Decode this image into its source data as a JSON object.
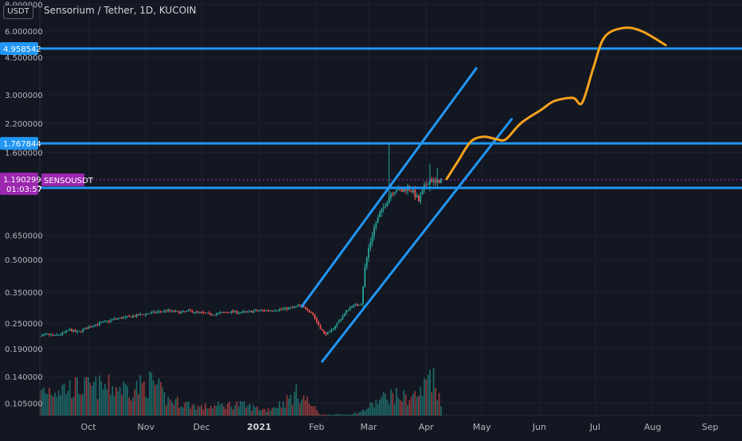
{
  "header": {
    "currency_badge": "USDT",
    "title": "Sensorium / Tether, 1D, KUCOIN"
  },
  "colors": {
    "background": "#131722",
    "grid": "#1e222d",
    "axis_text": "#b2b5be",
    "up": "#26a69a",
    "down": "#ef5350",
    "trend_line": "#2196f3",
    "projection": "#f7a21b",
    "price_tag": "#9c27b0"
  },
  "chart_data": {
    "type": "candlestick",
    "symbol": "SENSOUSDT",
    "exchange": "KUCOIN",
    "interval": "1D",
    "y_scale": "log",
    "y_tick_labels": [
      "8.000000",
      "6.000000",
      "4.500000",
      "3.000000",
      "2.200000",
      "1.600000",
      "0.650000",
      "0.500000",
      "0.350000",
      "0.250000",
      "0.190000",
      "0.140000",
      "0.105000"
    ],
    "y_ticks": [
      8.0,
      6.0,
      4.5,
      3.0,
      2.2,
      1.6,
      0.65,
      0.5,
      0.35,
      0.25,
      0.19,
      0.14,
      0.105
    ],
    "x_tick_labels": [
      "Oct",
      "Nov",
      "Dec",
      "2021",
      "Feb",
      "Mar",
      "Apr",
      "May",
      "Jun",
      "Jul",
      "Aug",
      "Sep"
    ],
    "x_tick_dates": [
      "2020-10-01",
      "2020-11-01",
      "2020-12-01",
      "2021-01-01",
      "2021-02-01",
      "2021-03-01",
      "2021-04-01",
      "2021-05-01",
      "2021-06-01",
      "2021-07-01",
      "2021-08-01",
      "2021-09-01"
    ],
    "x_range": [
      "2020-09-01",
      "2021-09-30"
    ],
    "last_price": {
      "value": 1.190299,
      "label": "1.190299",
      "name": "SENSOUSDT",
      "countdown": "01:03:57"
    },
    "horizontal_levels": [
      {
        "value": 4.958542,
        "label": "4.958542"
      },
      {
        "value": 1.767844,
        "label": "1.767844"
      },
      {
        "value": 1.09004,
        "label": "1.090040"
      }
    ],
    "trend_lines": [
      {
        "from": [
          "2021-01-24",
          0.3
        ],
        "to": [
          "2021-04-28",
          4.0
        ]
      },
      {
        "from": [
          "2021-02-04",
          0.165
        ],
        "to": [
          "2021-05-17",
          2.3
        ]
      }
    ],
    "projection_path": [
      [
        "2021-04-12",
        1.2
      ],
      [
        "2021-04-18",
        1.45
      ],
      [
        "2021-04-25",
        1.8
      ],
      [
        "2021-05-02",
        1.9
      ],
      [
        "2021-05-09",
        1.85
      ],
      [
        "2021-05-14",
        1.85
      ],
      [
        "2021-05-22",
        2.2
      ],
      [
        "2021-06-02",
        2.55
      ],
      [
        "2021-06-09",
        2.8
      ],
      [
        "2021-06-19",
        2.9
      ],
      [
        "2021-06-24",
        2.75
      ],
      [
        "2021-06-30",
        4.0
      ],
      [
        "2021-07-06",
        5.6
      ],
      [
        "2021-07-16",
        6.2
      ],
      [
        "2021-07-26",
        6.0
      ],
      [
        "2021-08-08",
        5.15
      ]
    ],
    "price_series": [
      [
        "2020-09-01",
        0.214
      ],
      [
        "2020-09-05",
        0.216
      ],
      [
        "2020-09-09",
        0.221
      ],
      [
        "2020-09-13",
        0.218
      ],
      [
        "2020-09-17",
        0.224
      ],
      [
        "2020-09-21",
        0.233
      ],
      [
        "2020-09-25",
        0.226
      ],
      [
        "2020-09-29",
        0.235
      ],
      [
        "2020-10-03",
        0.244
      ],
      [
        "2020-10-07",
        0.25
      ],
      [
        "2020-10-11",
        0.255
      ],
      [
        "2020-10-15",
        0.262
      ],
      [
        "2020-10-19",
        0.265
      ],
      [
        "2020-10-23",
        0.268
      ],
      [
        "2020-10-27",
        0.272
      ],
      [
        "2020-10-31",
        0.276
      ],
      [
        "2020-11-04",
        0.28
      ],
      [
        "2020-11-08",
        0.283
      ],
      [
        "2020-11-12",
        0.287
      ],
      [
        "2020-11-16",
        0.284
      ],
      [
        "2020-11-20",
        0.281
      ],
      [
        "2020-11-24",
        0.286
      ],
      [
        "2020-11-28",
        0.282
      ],
      [
        "2020-12-02",
        0.279
      ],
      [
        "2020-12-06",
        0.276
      ],
      [
        "2020-12-10",
        0.278
      ],
      [
        "2020-12-14",
        0.282
      ],
      [
        "2020-12-18",
        0.284
      ],
      [
        "2020-12-22",
        0.281
      ],
      [
        "2020-12-26",
        0.283
      ],
      [
        "2020-12-30",
        0.286
      ],
      [
        "2021-01-03",
        0.287
      ],
      [
        "2021-01-07",
        0.288
      ],
      [
        "2021-01-11",
        0.29
      ],
      [
        "2021-01-15",
        0.293
      ],
      [
        "2021-01-19",
        0.296
      ],
      [
        "2021-01-22",
        0.302
      ],
      [
        "2021-01-24",
        0.3
      ],
      [
        "2021-01-27",
        0.292
      ],
      [
        "2021-01-30",
        0.275
      ],
      [
        "2021-02-02",
        0.245
      ],
      [
        "2021-02-05",
        0.223
      ],
      [
        "2021-02-08",
        0.226
      ],
      [
        "2021-02-11",
        0.244
      ],
      [
        "2021-02-14",
        0.263
      ],
      [
        "2021-02-17",
        0.285
      ],
      [
        "2021-02-20",
        0.303
      ],
      [
        "2021-02-23",
        0.305
      ],
      [
        "2021-02-25",
        0.312
      ],
      [
        "2021-02-27",
        0.455
      ],
      [
        "2021-03-01",
        0.565
      ],
      [
        "2021-03-04",
        0.71
      ],
      [
        "2021-03-07",
        0.82
      ],
      [
        "2021-03-10",
        0.915
      ],
      [
        "2021-03-13",
        1.03
      ],
      [
        "2021-03-16",
        1.08
      ],
      [
        "2021-03-19",
        1.05
      ],
      [
        "2021-03-22",
        1.1
      ],
      [
        "2021-03-25",
        1.04
      ],
      [
        "2021-03-28",
        0.945
      ],
      [
        "2021-03-31",
        1.1
      ],
      [
        "2021-04-03",
        1.2
      ],
      [
        "2021-04-06",
        1.15
      ],
      [
        "2021-04-09",
        1.19
      ]
    ],
    "spikes": [
      {
        "date": "2021-03-12",
        "high": 1.767844,
        "low": 0.98
      },
      {
        "date": "2021-04-03",
        "high": 1.42,
        "low": 1.05
      },
      {
        "date": "2021-04-07",
        "high": 1.35,
        "low": 1.08
      }
    ],
    "volume_profile": [
      [
        "2020-09-01",
        0.55
      ],
      [
        "2020-09-20",
        0.6
      ],
      [
        "2020-10-10",
        0.62
      ],
      [
        "2020-10-25",
        0.58
      ],
      [
        "2020-11-05",
        0.72
      ],
      [
        "2020-11-12",
        0.35
      ],
      [
        "2020-12-01",
        0.18
      ],
      [
        "2020-12-20",
        0.25
      ],
      [
        "2021-01-05",
        0.12
      ],
      [
        "2021-01-15",
        0.3
      ],
      [
        "2021-01-22",
        0.5
      ],
      [
        "2021-01-28",
        0.28
      ],
      [
        "2021-02-03",
        0.02
      ],
      [
        "2021-02-20",
        0.03
      ],
      [
        "2021-02-25",
        0.08
      ],
      [
        "2021-03-05",
        0.28
      ],
      [
        "2021-03-12",
        0.45
      ],
      [
        "2021-03-22",
        0.38
      ],
      [
        "2021-03-30",
        0.5
      ],
      [
        "2021-04-03",
        1.0
      ],
      [
        "2021-04-09",
        0.35
      ]
    ]
  }
}
